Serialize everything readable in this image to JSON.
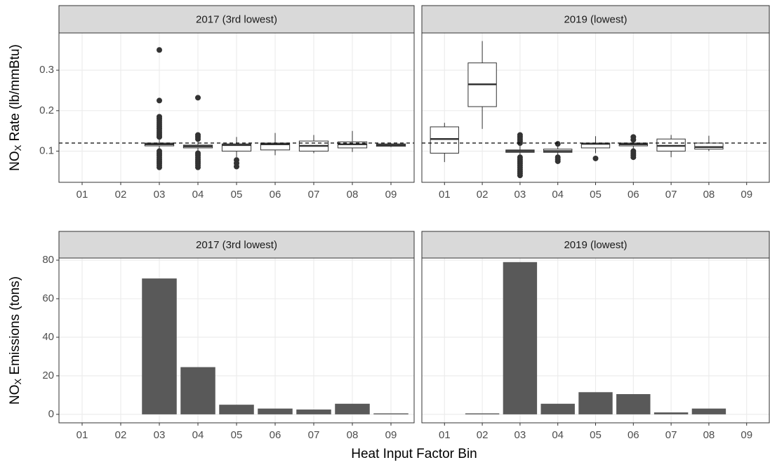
{
  "x_label": "Heat Input Factor Bin",
  "chart_data": [
    {
      "type": "box",
      "title": "2017 (3rd lowest)",
      "y_label": {
        "main": "NO",
        "sub": "X",
        "rest": " Rate (lb/mmBtu)"
      },
      "categories": [
        "01",
        "02",
        "03",
        "04",
        "05",
        "06",
        "07",
        "08",
        "09"
      ],
      "ylim": [
        0.023,
        0.392
      ],
      "yticks": [
        0.1,
        0.2,
        0.3
      ],
      "grid": true,
      "hline": 0.12,
      "boxes": [
        null,
        null,
        {
          "min": 0.105,
          "q1": 0.113,
          "median": 0.117,
          "q3": 0.12,
          "max": 0.128,
          "outliers": [
            0.06,
            0.065,
            0.07,
            0.075,
            0.08,
            0.085,
            0.09,
            0.095,
            0.1,
            0.135,
            0.14,
            0.145,
            0.15,
            0.155,
            0.16,
            0.165,
            0.17,
            0.175,
            0.18,
            0.185,
            0.225,
            0.35
          ]
        },
        {
          "min": 0.1,
          "q1": 0.108,
          "median": 0.112,
          "q3": 0.115,
          "max": 0.125,
          "outliers": [
            0.06,
            0.065,
            0.07,
            0.075,
            0.08,
            0.085,
            0.09,
            0.095,
            0.13,
            0.135,
            0.14,
            0.232
          ]
        },
        {
          "min": 0.085,
          "q1": 0.1,
          "median": 0.115,
          "q3": 0.118,
          "max": 0.135,
          "outliers": [
            0.062,
            0.07,
            0.078
          ]
        },
        {
          "min": 0.09,
          "q1": 0.103,
          "median": 0.117,
          "q3": 0.12,
          "max": 0.145,
          "outliers": []
        },
        {
          "min": 0.095,
          "q1": 0.1,
          "median": 0.113,
          "q3": 0.125,
          "max": 0.14,
          "outliers": []
        },
        {
          "min": 0.098,
          "q1": 0.108,
          "median": 0.117,
          "q3": 0.123,
          "max": 0.15,
          "outliers": []
        },
        {
          "min": 0.11,
          "q1": 0.112,
          "median": 0.115,
          "q3": 0.118,
          "max": 0.12,
          "outliers": []
        }
      ]
    },
    {
      "type": "box",
      "title": "2019 (lowest)",
      "categories": [
        "01",
        "02",
        "03",
        "04",
        "05",
        "06",
        "07",
        "08",
        "09"
      ],
      "ylim": [
        0.023,
        0.392
      ],
      "yticks": [
        0.1,
        0.2,
        0.3
      ],
      "grid": true,
      "hline": 0.12,
      "boxes": [
        {
          "min": 0.073,
          "q1": 0.095,
          "median": 0.13,
          "q3": 0.16,
          "max": 0.17,
          "outliers": []
        },
        {
          "min": 0.155,
          "q1": 0.21,
          "median": 0.265,
          "q3": 0.318,
          "max": 0.372,
          "outliers": []
        },
        {
          "min": 0.09,
          "q1": 0.097,
          "median": 0.1,
          "q3": 0.103,
          "max": 0.115,
          "outliers": [
            0.04,
            0.045,
            0.05,
            0.055,
            0.06,
            0.065,
            0.07,
            0.075,
            0.08,
            0.085,
            0.12,
            0.125,
            0.13,
            0.135,
            0.14
          ]
        },
        {
          "min": 0.09,
          "q1": 0.097,
          "median": 0.1,
          "q3": 0.105,
          "max": 0.112,
          "outliers": [
            0.075,
            0.08,
            0.085,
            0.118
          ]
        },
        {
          "min": 0.095,
          "q1": 0.108,
          "median": 0.118,
          "q3": 0.12,
          "max": 0.137,
          "outliers": [
            0.082
          ]
        },
        {
          "min": 0.105,
          "q1": 0.113,
          "median": 0.117,
          "q3": 0.12,
          "max": 0.125,
          "outliers": [
            0.085,
            0.09,
            0.095,
            0.1,
            0.128,
            0.135
          ]
        },
        {
          "min": 0.085,
          "q1": 0.1,
          "median": 0.113,
          "q3": 0.13,
          "max": 0.14,
          "outliers": []
        },
        {
          "min": 0.1,
          "q1": 0.105,
          "median": 0.11,
          "q3": 0.12,
          "max": 0.138,
          "outliers": []
        },
        null
      ]
    },
    {
      "type": "bar",
      "title": "2017 (3rd lowest)",
      "y_label": {
        "main": "NO",
        "sub": "X",
        "rest": " Emissions (tons)"
      },
      "categories": [
        "01",
        "02",
        "03",
        "04",
        "05",
        "06",
        "07",
        "08",
        "09"
      ],
      "ylim": [
        -4.4,
        81.1
      ],
      "yticks": [
        0,
        20,
        40,
        60,
        80
      ],
      "grid": true,
      "color": "#595959",
      "values": [
        null,
        null,
        70.5,
        24.5,
        5,
        3,
        2.5,
        5.5,
        0.5
      ]
    },
    {
      "type": "bar",
      "title": "2019 (lowest)",
      "categories": [
        "01",
        "02",
        "03",
        "04",
        "05",
        "06",
        "07",
        "08",
        "09"
      ],
      "ylim": [
        -4.4,
        81.1
      ],
      "yticks": [
        0,
        20,
        40,
        60,
        80
      ],
      "grid": true,
      "color": "#595959",
      "values": [
        null,
        0.5,
        79,
        5.5,
        11.5,
        10.5,
        1,
        3,
        null
      ]
    }
  ]
}
